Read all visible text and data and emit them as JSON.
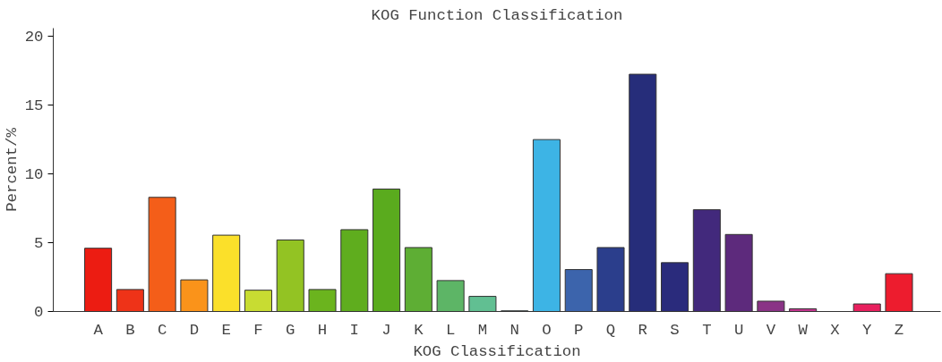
{
  "chart_data": {
    "type": "bar",
    "title": "KOG Function Classification",
    "xlabel": "KOG Classification",
    "ylabel": "Percent/%",
    "categories": [
      "A",
      "B",
      "C",
      "D",
      "E",
      "F",
      "G",
      "H",
      "I",
      "J",
      "K",
      "L",
      "M",
      "N",
      "O",
      "P",
      "Q",
      "R",
      "S",
      "T",
      "U",
      "V",
      "W",
      "X",
      "Y",
      "Z"
    ],
    "values": [
      4.6,
      1.6,
      8.3,
      2.3,
      5.55,
      1.55,
      5.2,
      1.6,
      5.95,
      8.9,
      4.65,
      2.25,
      1.1,
      0.05,
      12.5,
      3.05,
      4.65,
      17.25,
      3.55,
      7.4,
      5.6,
      0.75,
      0.2,
      0,
      0.55,
      2.75
    ],
    "colors": [
      "#ec1c12",
      "#ee3318",
      "#f45e19",
      "#fa931a",
      "#fbe02a",
      "#c8dc32",
      "#93c323",
      "#6bb41e",
      "#5fad1e",
      "#5aab1e",
      "#5eae34",
      "#5db566",
      "#61bf92",
      "#5cbcb0",
      "#3db4e5",
      "#3c64ac",
      "#2b3e8c",
      "#262d7a",
      "#2a2b7c",
      "#42297c",
      "#5d2a7c",
      "#8a3386",
      "#c2358e",
      "#e0246a",
      "#e8205e",
      "#ed1c2e"
    ],
    "ylim": [
      0,
      20.6
    ],
    "yticks": [
      0,
      5,
      10,
      15,
      20
    ],
    "grid": false
  }
}
